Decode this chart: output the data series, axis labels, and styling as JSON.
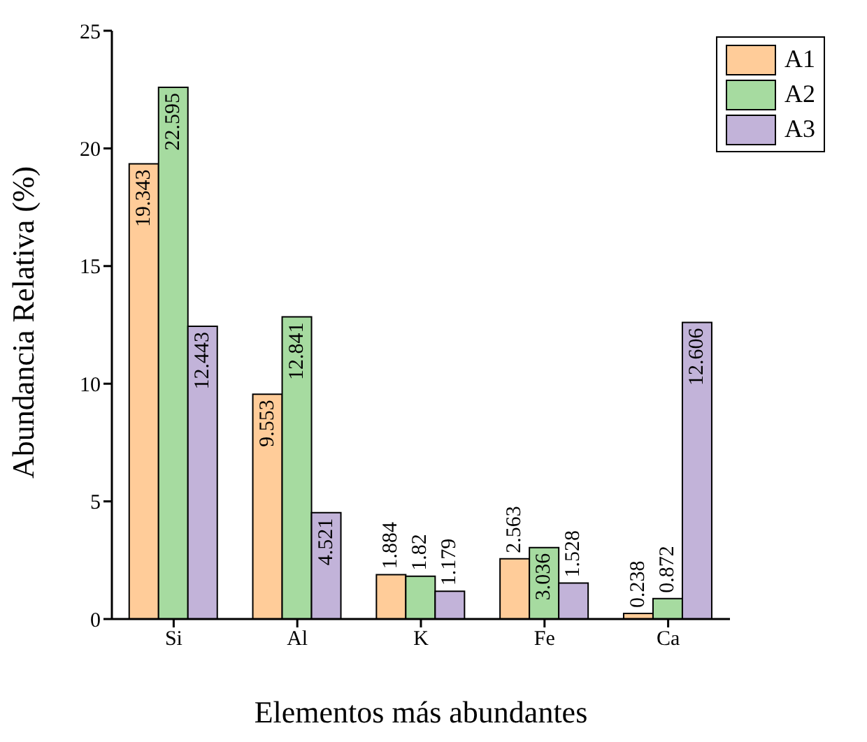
{
  "chart_data": {
    "type": "bar",
    "xlabel": "Elementos más abundantes",
    "ylabel": "Abundancia Relativa (%)",
    "categories": [
      "Si",
      "Al",
      "K",
      "Fe",
      "Ca"
    ],
    "series": [
      {
        "name": "A1",
        "color": "#ffcc99",
        "values": [
          19.343,
          9.553,
          1.884,
          2.563,
          0.238
        ]
      },
      {
        "name": "A2",
        "color": "#a6dba0",
        "values": [
          22.595,
          12.841,
          1.82,
          3.036,
          0.872
        ]
      },
      {
        "name": "A3",
        "color": "#c2b3d9",
        "values": [
          12.443,
          4.521,
          1.179,
          1.528,
          12.606
        ]
      }
    ],
    "ylim": [
      0,
      25
    ],
    "yticks": [
      0,
      5,
      10,
      15,
      20,
      25
    ],
    "data_labels": true,
    "legend": "top right",
    "grid": false
  }
}
